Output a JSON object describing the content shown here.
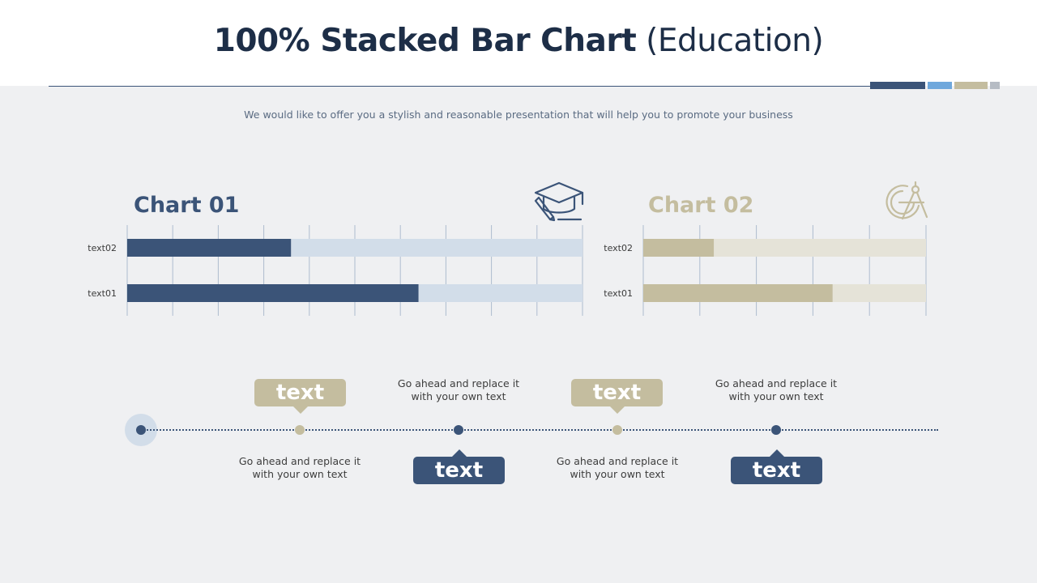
{
  "title": {
    "bold": "100% Stacked Bar Chart",
    "light": " (Education)"
  },
  "subtitle": "We would like to offer you a stylish and reasonable presentation that will help you to promote your business",
  "colors": {
    "navy": "#3b5478",
    "light_blue": "#d2dde9",
    "tan": "#c4bd9f",
    "light_tan": "#e5e3d8",
    "accent_blue": "#6fa8dc",
    "grey": "#b6bcc4"
  },
  "icons": {
    "chart1": "graduation-cap-icon",
    "chart2": "compass-drawing-icon"
  },
  "chart_data": [
    {
      "type": "bar",
      "orientation": "horizontal",
      "stacked_percent": true,
      "title": "Chart 01",
      "categories": [
        "text02",
        "text01"
      ],
      "series": [
        {
          "values": [
            36,
            64
          ],
          "color": "#3b5478"
        },
        {
          "values": [
            64,
            36
          ],
          "color": "#d2dde9"
        }
      ],
      "xlim": [
        0,
        100
      ],
      "grid": true,
      "legend": "none"
    },
    {
      "type": "bar",
      "orientation": "horizontal",
      "stacked_percent": true,
      "title": "Chart 02",
      "categories": [
        "text02",
        "text01"
      ],
      "series": [
        {
          "values": [
            25,
            67
          ],
          "color": "#c4bd9f"
        },
        {
          "values": [
            75,
            33
          ],
          "color": "#e5e3d8"
        }
      ],
      "xlim": [
        0,
        100
      ],
      "grid": true,
      "legend": "none"
    }
  ],
  "timeline": {
    "tags": [
      "text",
      "text",
      "text",
      "text"
    ],
    "texts": [
      "Go ahead and replace it with your own text",
      "Go ahead and replace it with your own text",
      "Go ahead and replace it with your own text",
      "Go ahead and replace it with your own text"
    ]
  }
}
